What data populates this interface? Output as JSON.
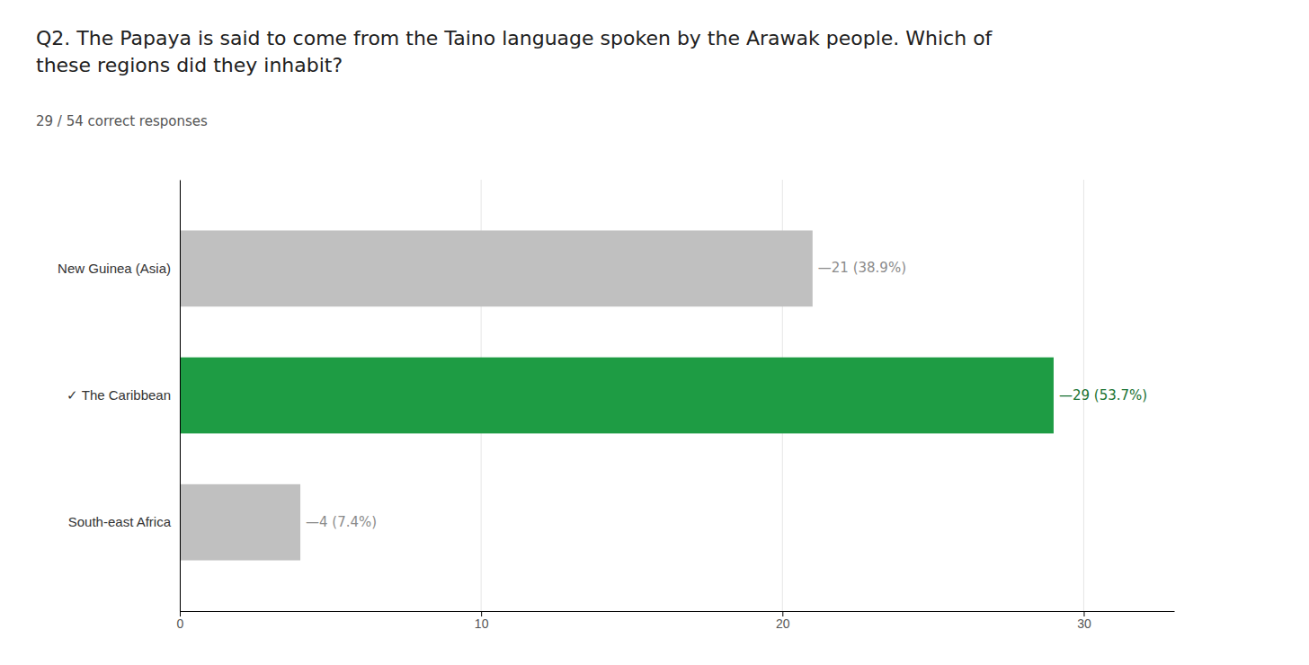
{
  "chart_data": {
    "type": "bar",
    "orientation": "horizontal",
    "title": "Q2. The Papaya is said to come from the Taino language spoken by the Arawak people. Which of\nthese regions did they inhabit?",
    "subtitle": "29 / 54 correct responses",
    "categories": [
      "New Guinea (Asia)",
      "✓ The Caribbean",
      "South-east Africa"
    ],
    "values": [
      21,
      29,
      4
    ],
    "value_labels": [
      "—21 (38.9%)",
      "—29 (53.7%)",
      "—4 (7.4%)"
    ],
    "data_labels": true,
    "colors": [
      "#c0c0c0",
      "#1e9c44",
      "#c0c0c0"
    ],
    "xlim": [
      0,
      33
    ],
    "xticks": [
      0,
      10,
      20,
      30
    ],
    "grid": true
  }
}
